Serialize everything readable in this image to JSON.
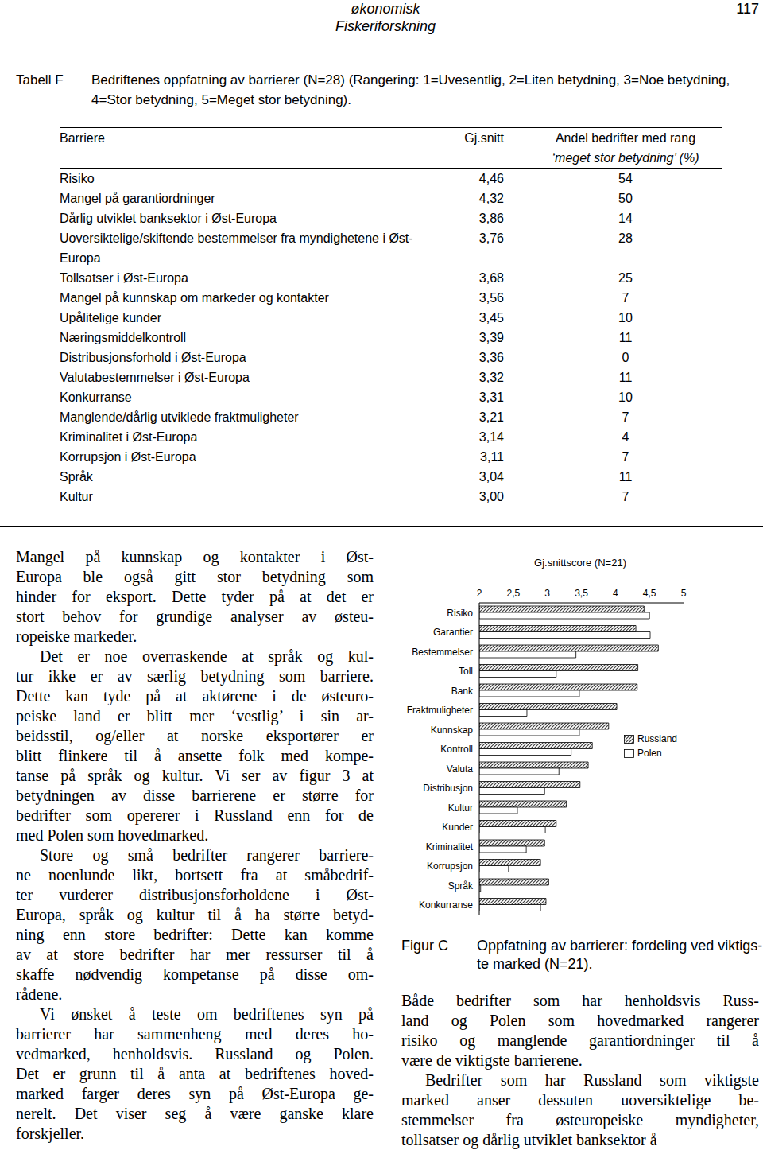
{
  "header": {
    "journal": [
      "økonomisk",
      "Fiskeriforskning"
    ],
    "page": "117"
  },
  "table": {
    "label": "Tabell F",
    "caption": [
      "Bedriftenes oppfatning av barrierer (N=28) (Rangering: 1=Uvesentlig, 2=Liten betydning, 3=Noe betydning,",
      "4=Stor betydning, 5=Meget stor betydning)."
    ],
    "columns": [
      [
        "Barriere"
      ],
      [
        "Gj.snitt"
      ],
      [
        "Andel bedrifter med rang",
        "‘meget stor betydning’ (%)"
      ]
    ],
    "rows": [
      [
        "Risiko",
        "4,46",
        "54"
      ],
      [
        "Mangel på garantiordninger",
        "4,32",
        "50"
      ],
      [
        "Dårlig utviklet banksektor i Øst-Europa",
        "3,86",
        "14"
      ],
      [
        "Uoversiktelige/skiftende bestemmelser fra myndighetene i Øst-Europa",
        "3,76",
        "28"
      ],
      [
        "Tollsatser i Øst-Europa",
        "3,68",
        "25"
      ],
      [
        "Mangel på kunnskap om markeder og kontakter",
        "3,56",
        "7"
      ],
      [
        "Upålitelige kunder",
        "3,45",
        "10"
      ],
      [
        "Næringsmiddelkontroll",
        "3,39",
        "11"
      ],
      [
        "Distribusjonsforhold i Øst-Europa",
        "3,36",
        "0"
      ],
      [
        "Valutabestemmelser i Øst-Europa",
        "3,32",
        "11"
      ],
      [
        "Konkurranse",
        "3,31",
        "10"
      ],
      [
        "Manglende/dårlig utviklede fraktmuligheter",
        "3,21",
        "7"
      ],
      [
        "Kriminalitet i Øst-Europa",
        "3,14",
        "4"
      ],
      [
        "Korrupsjon i Øst-Europa",
        "3,11",
        "7"
      ],
      [
        "Språk",
        "3,04",
        "11"
      ],
      [
        "Kultur",
        "3,00",
        "7"
      ]
    ]
  },
  "text_left": [
    [
      "Mangel på kunnskap og kontakter i Øst-",
      "Europa ble også gitt stor betydning som",
      "hinder for eksport. Dette tyder på at det er",
      "stort behov for grundige analyser av østeu-",
      "ropeiske markeder."
    ],
    [
      "Det er noe overraskende at språk og kul-",
      "tur ikke er av særlig betydning som barriere.",
      "Dette kan tyde på at aktørene i de østeuro-",
      "peiske land er blitt mer ‘vestlig’ i sin ar-",
      "beidsstil, og/eller at norske eksportører er",
      "blitt flinkere til å ansette folk med kompe-",
      "tanse på språk og kultur. Vi ser av figur 3 at",
      "betydningen av disse barrierene er større for",
      "bedrifter som opererer i Russland enn for de",
      "med Polen som hovedmarked."
    ],
    [
      "Store og små bedrifter rangerer barriere-",
      "ne noenlunde likt, bortsett fra at småbedrif-",
      "ter vurderer distribusjonsforholdene i Øst-",
      "Europa, språk og kultur til å ha større betyd-",
      "ning enn store bedrifter: Dette kan komme",
      "av at store bedrifter har mer ressurser til å",
      "skaffe nødvendig kompetanse på disse om-",
      "rådene."
    ],
    [
      "Vi ønsket å teste om bedriftenes syn på",
      "barrierer har sammenheng med deres ho-",
      "vedmarked, henholdsvis. Russland og Polen.",
      "Det er grunn til å anta at bedriftenes hoved-",
      "marked farger deres syn på Øst-Europa ge-",
      "nerelt. Det viser seg å være ganske klare",
      "forskjeller."
    ]
  ],
  "figure": {
    "label": "Figur C",
    "caption": [
      "Oppfatning av barrierer: fordeling ved viktigs-",
      "te marked (N=21)."
    ]
  },
  "chart_data": {
    "type": "bar",
    "orientation": "horizontal",
    "title": "Gj.snittscore (N=21)",
    "categories": [
      "Risiko",
      "Garantier",
      "Bestemmelser",
      "Toll",
      "Bank",
      "Fraktmuligheter",
      "Kunnskap",
      "Kontroll",
      "Valuta",
      "Distribusjon",
      "Kultur",
      "Kunder",
      "Kriminalitet",
      "Korrupsjon",
      "Språk",
      "Konkurranse"
    ],
    "series": [
      {
        "name": "Russland",
        "color": "#404040",
        "values": [
          4.42,
          4.3,
          4.63,
          4.33,
          4.32,
          4.02,
          3.9,
          3.66,
          3.6,
          3.48,
          3.28,
          3.13,
          2.96,
          2.9,
          3.02,
          2.98
        ]
      },
      {
        "name": "Polen",
        "color": "#ffffff",
        "values": [
          4.5,
          4.51,
          3.42,
          3.13,
          3.47,
          2.7,
          3.47,
          3.35,
          3.17,
          2.96,
          2.56,
          2.97,
          2.69,
          2.43,
          2.02,
          2.9
        ]
      }
    ],
    "xlim": [
      2,
      5
    ],
    "xticks": [
      2,
      {
        "value": 2.5,
        "label": "2,5"
      },
      3,
      {
        "value": 3.5,
        "label": "3,5"
      },
      4,
      {
        "value": 4.5,
        "label": "4,5"
      },
      5
    ],
    "grid": false,
    "legend": "right"
  },
  "text_right": [
    [
      "Både bedrifter som har henholdsvis Russ-",
      "land og Polen som hovedmarked rangerer",
      "risiko og manglende garantiordninger til å",
      "være de viktigste barrierene."
    ],
    [
      "Bedrifter som har Russland som viktigste",
      "marked anser dessuten uoversiktelige be-",
      "stemmelser fra østeuropeiske myndigheter,",
      "tollsatser og dårlig utviklet banksektor å"
    ]
  ]
}
